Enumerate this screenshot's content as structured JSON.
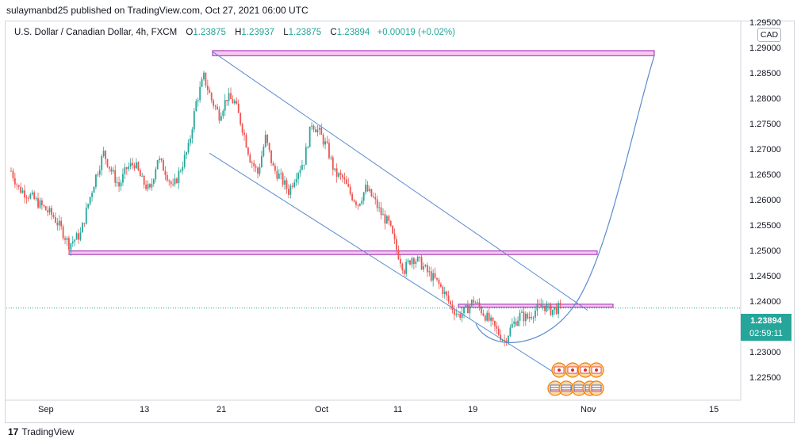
{
  "header": {
    "publisher_text": "sulaymanbd25 published on TradingView.com, Oct 27, 2021 06:00 UTC"
  },
  "legend": {
    "symbol": "U.S. Dollar / Canadian Dollar, 4h, FXCM",
    "open_label": "O",
    "open_value": "1.23875",
    "high_label": "H",
    "high_value": "1.23937",
    "low_label": "L",
    "low_value": "1.23875",
    "close_label": "C",
    "close_value": "1.23894",
    "change": "+0.00019 (+0.02%)"
  },
  "currency_button": "CAD",
  "price_tag": {
    "price": "1.23894",
    "countdown": "02:59:11"
  },
  "footer": {
    "logo_glyph": "17",
    "brand": "TradingView"
  },
  "colors": {
    "up": "#26a69a",
    "down": "#ef5350",
    "zone_fill": "#f7c6f2",
    "zone_stroke": "#9c27b0",
    "trend": "#5b8bd0"
  },
  "chart_data": {
    "type": "candlestick",
    "symbol": "USDCAD",
    "timeframe": "4h",
    "ylim": [
      1.2225,
      1.2925
    ],
    "y_ticks": [
      "1.22500",
      "1.23000",
      "1.23500",
      "1.24000",
      "1.24500",
      "1.25000",
      "1.25500",
      "1.26000",
      "1.26500",
      "1.27000",
      "1.27500",
      "1.28000",
      "1.28500",
      "1.29000",
      "1.29500"
    ],
    "x_ticks": [
      "Sep",
      "13",
      "21",
      "Oct",
      "11",
      "19",
      "Nov",
      "15"
    ],
    "last_price": 1.23894,
    "price_path": [
      [
        0,
        1.266
      ],
      [
        4,
        1.2625
      ],
      [
        10,
        1.261
      ],
      [
        16,
        1.259
      ],
      [
        22,
        1.257
      ],
      [
        26,
        1.2545
      ],
      [
        30,
        1.2515
      ],
      [
        36,
        1.2535
      ],
      [
        40,
        1.2595
      ],
      [
        44,
        1.265
      ],
      [
        48,
        1.2695
      ],
      [
        52,
        1.266
      ],
      [
        56,
        1.263
      ],
      [
        60,
        1.2665
      ],
      [
        64,
        1.2675
      ],
      [
        68,
        1.264
      ],
      [
        72,
        1.262
      ],
      [
        76,
        1.2685
      ],
      [
        80,
        1.266
      ],
      [
        84,
        1.2625
      ],
      [
        88,
        1.2665
      ],
      [
        92,
        1.2705
      ],
      [
        96,
        1.2795
      ],
      [
        100,
        1.2845
      ],
      [
        104,
        1.28
      ],
      [
        108,
        1.277
      ],
      [
        112,
        1.2805
      ],
      [
        116,
        1.2795
      ],
      [
        120,
        1.2745
      ],
      [
        124,
        1.2685
      ],
      [
        128,
        1.2655
      ],
      [
        132,
        1.2725
      ],
      [
        136,
        1.2665
      ],
      [
        140,
        1.2645
      ],
      [
        144,
        1.262
      ],
      [
        148,
        1.2655
      ],
      [
        152,
        1.268
      ],
      [
        156,
        1.2755
      ],
      [
        160,
        1.2735
      ],
      [
        164,
        1.2705
      ],
      [
        168,
        1.2655
      ],
      [
        172,
        1.2645
      ],
      [
        176,
        1.2615
      ],
      [
        180,
        1.2595
      ],
      [
        184,
        1.2625
      ],
      [
        188,
        1.2605
      ],
      [
        192,
        1.2575
      ],
      [
        196,
        1.2555
      ],
      [
        200,
        1.2505
      ],
      [
        204,
        1.2465
      ],
      [
        208,
        1.249
      ],
      [
        212,
        1.248
      ],
      [
        216,
        1.246
      ],
      [
        220,
        1.2445
      ],
      [
        224,
        1.2425
      ],
      [
        228,
        1.2395
      ],
      [
        232,
        1.2375
      ],
      [
        236,
        1.2385
      ],
      [
        240,
        1.2405
      ],
      [
        244,
        1.2385
      ],
      [
        248,
        1.2365
      ],
      [
        252,
        1.2345
      ],
      [
        256,
        1.2325
      ],
      [
        260,
        1.2355
      ],
      [
        264,
        1.2375
      ],
      [
        268,
        1.237
      ],
      [
        272,
        1.2385
      ],
      [
        276,
        1.2395
      ],
      [
        280,
        1.2385
      ],
      [
        284,
        1.2389
      ]
    ],
    "annotations": {
      "resistance_zone_top": {
        "y1": 1.2887,
        "y2": 1.2897
      },
      "support_zone_mid": {
        "y1": 1.2495,
        "y2": 1.2502
      },
      "consolidation_zone": {
        "y1": 1.2391,
        "y2": 1.2397
      },
      "channel_upper": [
        [
          0,
          1.2895
        ],
        [
          1,
          1.2385
        ]
      ],
      "channel_lower": [
        [
          0,
          1.2695
        ],
        [
          1,
          1.2255
        ]
      ],
      "projection_curve": {
        "low": 1.2315,
        "high": 1.2887
      }
    }
  }
}
